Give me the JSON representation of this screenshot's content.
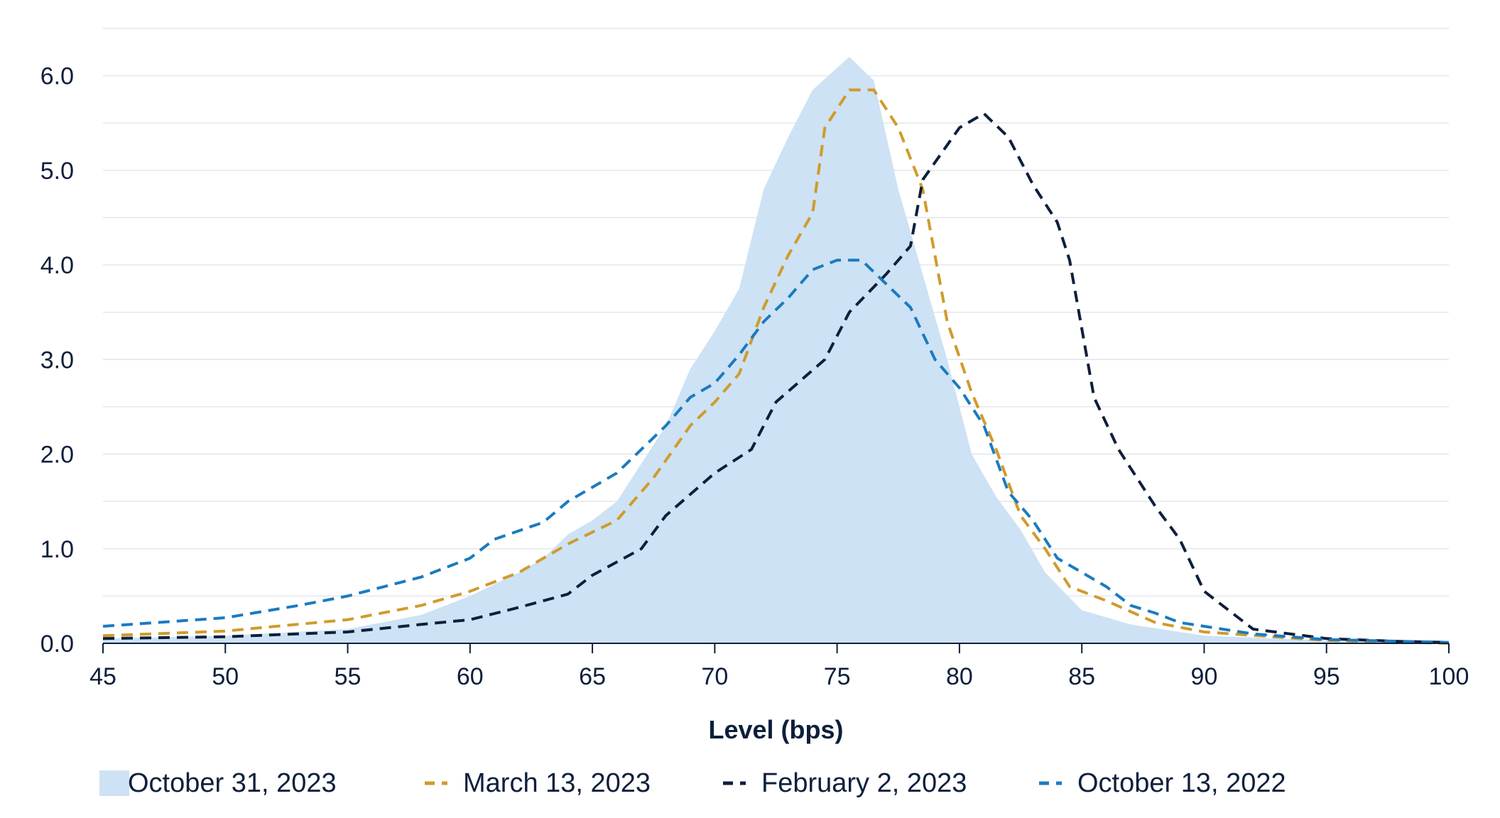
{
  "chart_data": {
    "type": "area",
    "title": "",
    "xlabel": "Level (bps)",
    "ylabel": "",
    "xlim": [
      45,
      100
    ],
    "ylim": [
      0,
      6.5
    ],
    "x_ticks": [
      45,
      50,
      55,
      60,
      65,
      70,
      75,
      80,
      85,
      90,
      95,
      100
    ],
    "y_ticks": [
      0,
      1,
      2,
      3,
      4,
      5,
      6
    ],
    "y_tick_labels": [
      "0.0",
      "1.0",
      "2.0",
      "3.0",
      "4.0",
      "5.0",
      "6.0"
    ],
    "grid": "horizontal",
    "legend_position": "bottom",
    "series": [
      {
        "name": "October 31, 2023",
        "style": "area",
        "color": "#cde2f4",
        "points": [
          [
            45,
            0.05
          ],
          [
            50,
            0.08
          ],
          [
            55,
            0.15
          ],
          [
            58,
            0.3
          ],
          [
            60,
            0.5
          ],
          [
            62,
            0.75
          ],
          [
            63,
            0.9
          ],
          [
            64,
            1.15
          ],
          [
            65,
            1.3
          ],
          [
            66,
            1.5
          ],
          [
            67,
            1.9
          ],
          [
            68,
            2.3
          ],
          [
            69,
            2.9
          ],
          [
            70,
            3.3
          ],
          [
            71,
            3.75
          ],
          [
            72,
            4.8
          ],
          [
            73,
            5.35
          ],
          [
            74,
            5.85
          ],
          [
            75.5,
            6.2
          ],
          [
            76.5,
            5.95
          ],
          [
            77.5,
            4.8
          ],
          [
            78.5,
            3.9
          ],
          [
            79.5,
            3.0
          ],
          [
            80.5,
            2.0
          ],
          [
            81.5,
            1.55
          ],
          [
            82.5,
            1.2
          ],
          [
            83.5,
            0.75
          ],
          [
            85,
            0.35
          ],
          [
            87,
            0.2
          ],
          [
            90,
            0.08
          ],
          [
            95,
            0.03
          ],
          [
            100,
            0.0
          ]
        ]
      },
      {
        "name": "March 13, 2023",
        "style": "dashed",
        "color": "#d09b2c",
        "points": [
          [
            45,
            0.08
          ],
          [
            50,
            0.13
          ],
          [
            55,
            0.25
          ],
          [
            58,
            0.4
          ],
          [
            60,
            0.55
          ],
          [
            62,
            0.75
          ],
          [
            64,
            1.05
          ],
          [
            66,
            1.3
          ],
          [
            67.5,
            1.75
          ],
          [
            69,
            2.3
          ],
          [
            70,
            2.55
          ],
          [
            71,
            2.85
          ],
          [
            72,
            3.55
          ],
          [
            73,
            4.1
          ],
          [
            74,
            4.55
          ],
          [
            74.5,
            5.45
          ],
          [
            75.5,
            5.85
          ],
          [
            76.5,
            5.85
          ],
          [
            77.5,
            5.45
          ],
          [
            78.5,
            4.8
          ],
          [
            79.5,
            3.4
          ],
          [
            80.5,
            2.65
          ],
          [
            81.5,
            2.05
          ],
          [
            82.5,
            1.35
          ],
          [
            83.5,
            1.0
          ],
          [
            84.5,
            0.6
          ],
          [
            86,
            0.45
          ],
          [
            88,
            0.22
          ],
          [
            90,
            0.12
          ],
          [
            95,
            0.03
          ],
          [
            100,
            0.0
          ]
        ]
      },
      {
        "name": "February 2, 2023",
        "style": "dashed",
        "color": "#0e1f3b",
        "points": [
          [
            45,
            0.05
          ],
          [
            50,
            0.07
          ],
          [
            55,
            0.12
          ],
          [
            58,
            0.2
          ],
          [
            60,
            0.25
          ],
          [
            62,
            0.38
          ],
          [
            64,
            0.52
          ],
          [
            65,
            0.72
          ],
          [
            67,
            1.0
          ],
          [
            68,
            1.35
          ],
          [
            70,
            1.8
          ],
          [
            71.5,
            2.05
          ],
          [
            72.5,
            2.55
          ],
          [
            74.5,
            3.0
          ],
          [
            75.5,
            3.5
          ],
          [
            77,
            3.9
          ],
          [
            78,
            4.2
          ],
          [
            78.5,
            4.9
          ],
          [
            80,
            5.45
          ],
          [
            81,
            5.6
          ],
          [
            82,
            5.35
          ],
          [
            83,
            4.85
          ],
          [
            84,
            4.45
          ],
          [
            84.5,
            4.05
          ],
          [
            85.5,
            2.6
          ],
          [
            86.5,
            2.05
          ],
          [
            88,
            1.45
          ],
          [
            89,
            1.1
          ],
          [
            90,
            0.55
          ],
          [
            91,
            0.35
          ],
          [
            92,
            0.15
          ],
          [
            95,
            0.05
          ],
          [
            98,
            0.02
          ],
          [
            100,
            0.01
          ]
        ]
      },
      {
        "name": "October 13, 2022",
        "style": "dashed",
        "color": "#1a7bbf",
        "points": [
          [
            45,
            0.18
          ],
          [
            50,
            0.27
          ],
          [
            53,
            0.4
          ],
          [
            55,
            0.5
          ],
          [
            58,
            0.7
          ],
          [
            60,
            0.9
          ],
          [
            61,
            1.1
          ],
          [
            63,
            1.28
          ],
          [
            64,
            1.5
          ],
          [
            66,
            1.8
          ],
          [
            67,
            2.05
          ],
          [
            68,
            2.3
          ],
          [
            69,
            2.6
          ],
          [
            70,
            2.75
          ],
          [
            71,
            3.05
          ],
          [
            72,
            3.4
          ],
          [
            73,
            3.65
          ],
          [
            74,
            3.95
          ],
          [
            75,
            4.05
          ],
          [
            76,
            4.05
          ],
          [
            77,
            3.8
          ],
          [
            78,
            3.55
          ],
          [
            79,
            3.0
          ],
          [
            80,
            2.7
          ],
          [
            81,
            2.3
          ],
          [
            82,
            1.6
          ],
          [
            83,
            1.3
          ],
          [
            84,
            0.9
          ],
          [
            85,
            0.75
          ],
          [
            86,
            0.6
          ],
          [
            87,
            0.4
          ],
          [
            88,
            0.32
          ],
          [
            89,
            0.22
          ],
          [
            90,
            0.18
          ],
          [
            92,
            0.1
          ],
          [
            95,
            0.04
          ],
          [
            100,
            0.01
          ]
        ]
      }
    ]
  }
}
